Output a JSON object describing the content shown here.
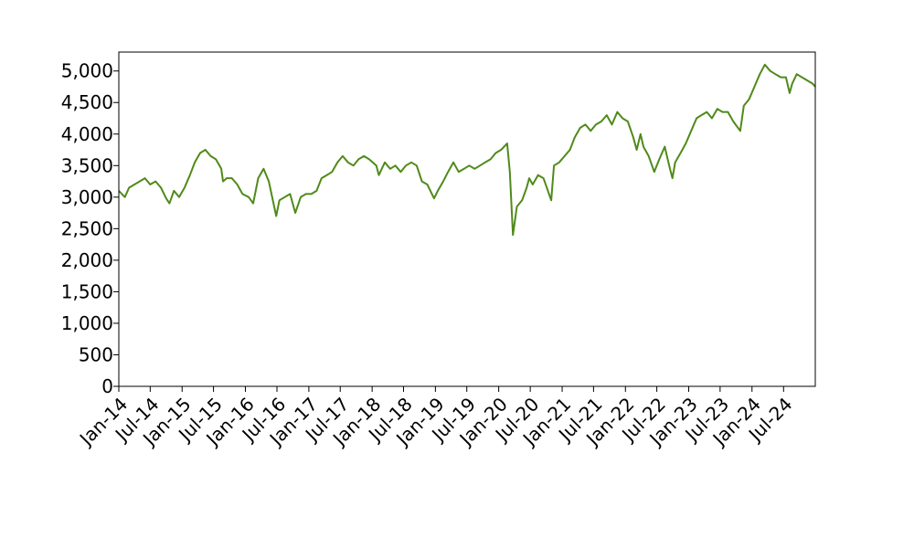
{
  "chart_data": {
    "type": "line",
    "title": "",
    "xlabel": "",
    "ylabel": "",
    "xlim": [
      "2014-01-01",
      "2024-12-31"
    ],
    "ylim": [
      0,
      5300
    ],
    "grid": false,
    "legend": "none",
    "colors": {
      "line": "#4f8a1a",
      "axis": "#000000",
      "background": "#ffffff"
    },
    "y_ticks": [
      {
        "value": 0,
        "label": "0"
      },
      {
        "value": 500,
        "label": "500"
      },
      {
        "value": 1000,
        "label": "1,000"
      },
      {
        "value": 1500,
        "label": "1,500"
      },
      {
        "value": 2000,
        "label": "2,000"
      },
      {
        "value": 2500,
        "label": "2,500"
      },
      {
        "value": 3000,
        "label": "3,000"
      },
      {
        "value": 3500,
        "label": "3,500"
      },
      {
        "value": 4000,
        "label": "4,000"
      },
      {
        "value": 4500,
        "label": "4,500"
      },
      {
        "value": 5000,
        "label": "5,000"
      }
    ],
    "x_ticks": [
      {
        "value": "2014-01-01",
        "label": "Jan-14"
      },
      {
        "value": "2014-07-01",
        "label": "Jul-14"
      },
      {
        "value": "2015-01-01",
        "label": "Jan-15"
      },
      {
        "value": "2015-07-01",
        "label": "Jul-15"
      },
      {
        "value": "2016-01-01",
        "label": "Jan-16"
      },
      {
        "value": "2016-07-01",
        "label": "Jul-16"
      },
      {
        "value": "2017-01-01",
        "label": "Jan-17"
      },
      {
        "value": "2017-07-01",
        "label": "Jul-17"
      },
      {
        "value": "2018-01-01",
        "label": "Jan-18"
      },
      {
        "value": "2018-07-01",
        "label": "Jul-18"
      },
      {
        "value": "2019-01-01",
        "label": "Jan-19"
      },
      {
        "value": "2019-07-01",
        "label": "Jul-19"
      },
      {
        "value": "2020-01-01",
        "label": "Jan-20"
      },
      {
        "value": "2020-07-01",
        "label": "Jul-20"
      },
      {
        "value": "2021-01-01",
        "label": "Jan-21"
      },
      {
        "value": "2021-07-01",
        "label": "Jul-21"
      },
      {
        "value": "2022-01-01",
        "label": "Jan-22"
      },
      {
        "value": "2022-07-01",
        "label": "Jul-22"
      },
      {
        "value": "2023-01-01",
        "label": "Jan-23"
      },
      {
        "value": "2023-07-01",
        "label": "Jul-23"
      },
      {
        "value": "2024-01-01",
        "label": "Jan-24"
      },
      {
        "value": "2024-07-01",
        "label": "Jul-24"
      }
    ],
    "series": [
      {
        "x": [
          "2014-01-01",
          "2014-02-05",
          "2014-03-01",
          "2014-04-01",
          "2014-05-01",
          "2014-06-01",
          "2014-07-01",
          "2014-08-01",
          "2014-09-01",
          "2014-10-01",
          "2014-10-20",
          "2014-11-15",
          "2014-12-15",
          "2015-01-15",
          "2015-02-15",
          "2015-03-15",
          "2015-04-15",
          "2015-05-15",
          "2015-06-15",
          "2015-07-15",
          "2015-08-15",
          "2015-08-25",
          "2015-09-15",
          "2015-10-15",
          "2015-11-15",
          "2015-12-15",
          "2016-01-20",
          "2016-02-15",
          "2016-03-15",
          "2016-04-15",
          "2016-05-15",
          "2016-06-27",
          "2016-07-15",
          "2016-08-15",
          "2016-09-15",
          "2016-10-15",
          "2016-11-15",
          "2016-12-15",
          "2017-01-15",
          "2017-02-15",
          "2017-03-15",
          "2017-04-15",
          "2017-05-15",
          "2017-06-15",
          "2017-07-15",
          "2017-08-15",
          "2017-09-15",
          "2017-10-15",
          "2017-11-15",
          "2017-12-15",
          "2018-01-25",
          "2018-02-09",
          "2018-03-15",
          "2018-04-15",
          "2018-05-15",
          "2018-06-15",
          "2018-07-15",
          "2018-08-15",
          "2018-09-15",
          "2018-10-15",
          "2018-11-15",
          "2018-12-24",
          "2019-01-15",
          "2019-02-15",
          "2019-03-15",
          "2019-04-15",
          "2019-05-15",
          "2019-06-15",
          "2019-07-15",
          "2019-08-15",
          "2019-09-15",
          "2019-10-15",
          "2019-11-15",
          "2019-12-15",
          "2020-01-15",
          "2020-02-19",
          "2020-03-05",
          "2020-03-23",
          "2020-04-15",
          "2020-05-15",
          "2020-06-10",
          "2020-06-25",
          "2020-07-15",
          "2020-08-15",
          "2020-09-15",
          "2020-10-30",
          "2020-11-15",
          "2020-12-15",
          "2021-01-15",
          "2021-02-15",
          "2021-03-15",
          "2021-04-15",
          "2021-05-15",
          "2021-06-15",
          "2021-07-15",
          "2021-08-15",
          "2021-09-15",
          "2021-10-15",
          "2021-11-15",
          "2021-12-15",
          "2022-01-15",
          "2022-02-15",
          "2022-03-07",
          "2022-03-29",
          "2022-04-15",
          "2022-05-15",
          "2022-06-16",
          "2022-07-15",
          "2022-08-16",
          "2022-09-15",
          "2022-09-29",
          "2022-10-15",
          "2022-11-15",
          "2022-12-15",
          "2023-01-15",
          "2023-02-15",
          "2023-03-15",
          "2023-04-15",
          "2023-05-15",
          "2023-06-15",
          "2023-07-15",
          "2023-08-15",
          "2023-09-15",
          "2023-10-25",
          "2023-11-15",
          "2023-12-15",
          "2024-01-15",
          "2024-02-15",
          "2024-03-15",
          "2024-04-15",
          "2024-05-15",
          "2024-06-15",
          "2024-07-15",
          "2024-08-05",
          "2024-08-20",
          "2024-09-15",
          "2024-10-15",
          "2024-11-15",
          "2024-12-15",
          "2024-12-31"
        ],
        "y": [
          3100,
          3000,
          3150,
          3200,
          3250,
          3300,
          3200,
          3250,
          3150,
          2980,
          2900,
          3100,
          3000,
          3150,
          3350,
          3550,
          3700,
          3750,
          3650,
          3600,
          3450,
          3250,
          3300,
          3300,
          3200,
          3050,
          3000,
          2900,
          3300,
          3450,
          3250,
          2700,
          2950,
          3000,
          3050,
          2750,
          3000,
          3050,
          3050,
          3100,
          3300,
          3350,
          3400,
          3550,
          3650,
          3550,
          3500,
          3600,
          3650,
          3600,
          3500,
          3350,
          3550,
          3450,
          3500,
          3400,
          3500,
          3550,
          3500,
          3250,
          3200,
          2980,
          3100,
          3250,
          3400,
          3550,
          3400,
          3450,
          3500,
          3450,
          3500,
          3550,
          3600,
          3700,
          3750,
          3850,
          3400,
          2400,
          2850,
          2950,
          3150,
          3300,
          3200,
          3350,
          3300,
          2950,
          3500,
          3550,
          3650,
          3750,
          3950,
          4100,
          4150,
          4050,
          4150,
          4200,
          4300,
          4150,
          4350,
          4250,
          4200,
          3950,
          3750,
          4000,
          3800,
          3650,
          3400,
          3600,
          3800,
          3450,
          3300,
          3550,
          3700,
          3850,
          4050,
          4250,
          4300,
          4350,
          4250,
          4400,
          4350,
          4350,
          4200,
          4050,
          4450,
          4550,
          4750,
          4950,
          5100,
          5000,
          4950,
          4900,
          4900,
          4650,
          4800,
          4950,
          4900,
          4850,
          4800,
          4750
        ]
      }
    ]
  }
}
